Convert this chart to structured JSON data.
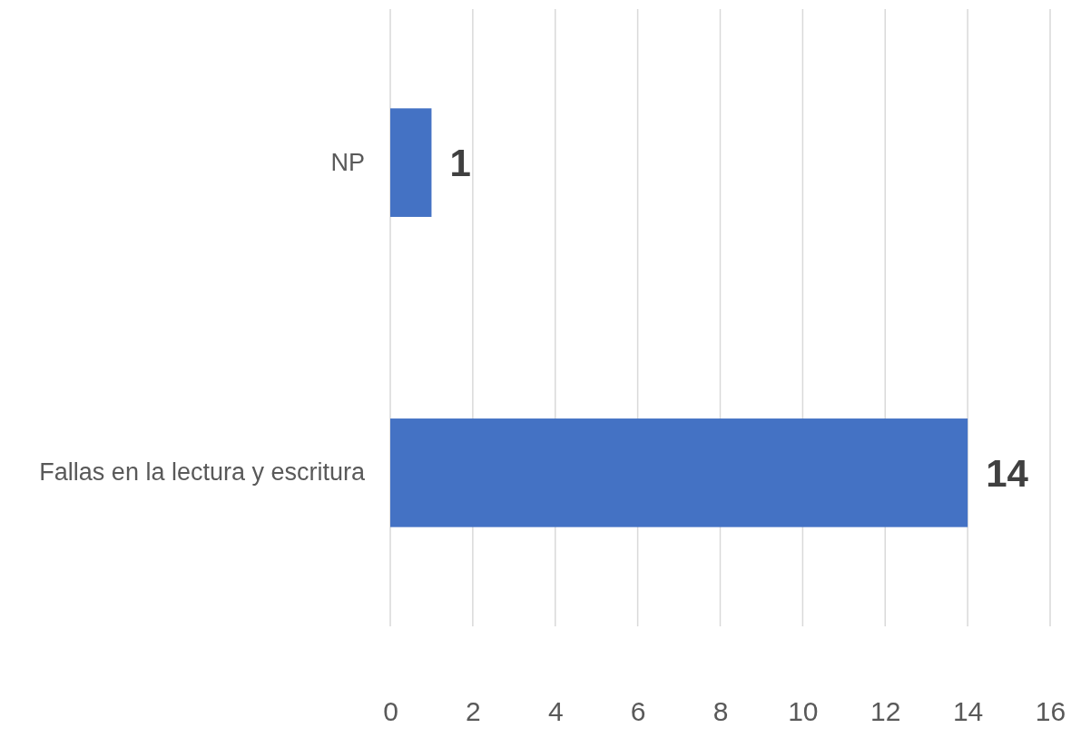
{
  "chart_data": {
    "type": "bar",
    "orientation": "horizontal",
    "categories": [
      "NP",
      "Fallas en la lectura y escritura"
    ],
    "values": [
      1,
      14
    ],
    "color": "#4472c4",
    "xlim": [
      0,
      16
    ],
    "xticks": [
      0,
      2,
      4,
      6,
      8,
      10,
      12,
      14,
      16
    ],
    "grid": "x",
    "data_labels": true
  }
}
